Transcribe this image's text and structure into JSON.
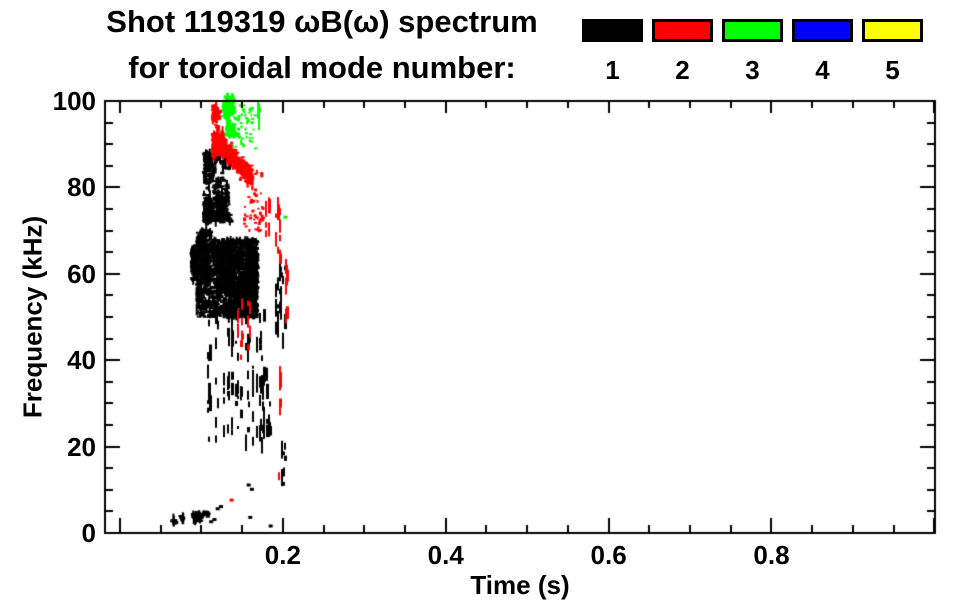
{
  "title": {
    "line1": "Shot 119319 ωB(ω) spectrum",
    "line2": "for toroidal mode number:"
  },
  "legend": {
    "items": [
      {
        "label": "1",
        "color": "#000000"
      },
      {
        "label": "2",
        "color": "#ff0000"
      },
      {
        "label": "3",
        "color": "#00ff00"
      },
      {
        "label": "4",
        "color": "#0000ff"
      },
      {
        "label": "5",
        "color": "#ffff00"
      }
    ]
  },
  "chart_data": {
    "type": "scatter",
    "title": "Shot 119319 ωB(ω) spectrum for toroidal mode number: 1 2 3 4 5",
    "xlabel": "Time (s)",
    "ylabel": "Frequency (kHz)",
    "xlim": [
      -0.0184,
      1.0008
    ],
    "ylim": [
      0,
      100
    ],
    "grid": false,
    "x_ticks": {
      "major_values": [
        0,
        0.2,
        0.4,
        0.6,
        0.8,
        1.0
      ],
      "minor_step": 0.05,
      "labeled": [
        {
          "value": 0.2,
          "label": "0.2"
        },
        {
          "value": 0.4,
          "label": "0.4"
        },
        {
          "value": 0.6,
          "label": "0.6"
        },
        {
          "value": 0.8,
          "label": "0.8"
        }
      ]
    },
    "y_ticks": {
      "major_values": [
        0,
        20,
        40,
        60,
        80,
        100
      ],
      "minor_step": 5,
      "labeled": [
        {
          "value": 0,
          "label": "0"
        },
        {
          "value": 20,
          "label": "20"
        },
        {
          "value": 40,
          "label": "40"
        },
        {
          "value": 60,
          "label": "60"
        },
        {
          "value": 80,
          "label": "80"
        },
        {
          "value": 100,
          "label": "100"
        }
      ]
    },
    "modes": [
      {
        "mode": 1,
        "color": "#000000"
      },
      {
        "mode": 2,
        "color": "#ff0000"
      },
      {
        "mode": 3,
        "color": "#00ff00"
      },
      {
        "mode": 4,
        "color": "#0000ff"
      },
      {
        "mode": 5,
        "color": "#ffff00"
      }
    ],
    "clusters": [
      {
        "type": "walk",
        "mode": 1,
        "t": [
          0.103,
          0.138
        ],
        "f": [
          72,
          88
        ],
        "n": 800,
        "seed": 11
      },
      {
        "type": "walk",
        "mode": 1,
        "t": [
          0.088,
          0.112
        ],
        "f": [
          58,
          70
        ],
        "n": 420,
        "seed": 12
      },
      {
        "type": "walk",
        "mode": 1,
        "t": [
          0.094,
          0.169
        ],
        "f": [
          50,
          68
        ],
        "n": 2600,
        "seed": 13
      },
      {
        "type": "streaks",
        "mode": 1,
        "t": [
          0.105,
          0.178
        ],
        "f": [
          22,
          52
        ],
        "k": 26,
        "seed": 14
      },
      {
        "type": "streaks",
        "mode": 1,
        "t": [
          0.172,
          0.186
        ],
        "f": [
          24,
          40
        ],
        "k": 5,
        "seed": 15
      },
      {
        "type": "streaks",
        "mode": 1,
        "t": [
          0.188,
          0.208
        ],
        "f": [
          46,
          64
        ],
        "k": 7,
        "seed": 16
      },
      {
        "type": "streaks",
        "mode": 1,
        "t": [
          0.196,
          0.206
        ],
        "f": [
          11,
          24
        ],
        "k": 3,
        "seed": 17
      },
      {
        "type": "walk",
        "mode": 1,
        "t": [
          0.089,
          0.109
        ],
        "f": [
          1,
          5
        ],
        "n": 130,
        "seed": 18
      },
      {
        "type": "walk",
        "mode": 1,
        "t": [
          0.059,
          0.078
        ],
        "f": [
          1,
          4
        ],
        "n": 60,
        "seed": 19
      },
      {
        "type": "dots",
        "mode": 1,
        "points": [
          [
            0.12,
            5.5
          ],
          [
            0.124,
            6
          ],
          [
            0.158,
            11
          ],
          [
            0.162,
            10
          ],
          [
            0.16,
            3.5
          ],
          [
            0.185,
            1.5
          ],
          [
            0.112,
            2.5
          ],
          [
            0.116,
            3
          ]
        ]
      },
      {
        "type": "walk",
        "mode": 2,
        "t": [
          0.114,
          0.136
        ],
        "f": [
          87,
          99
        ],
        "n": 280,
        "seed": 21
      },
      {
        "type": "band",
        "mode": 2,
        "t": [
          0.118,
          0.163
        ],
        "f_start": 91,
        "f_end": 82,
        "spread": 2.2,
        "n": 520,
        "seed": 22
      },
      {
        "type": "scatter",
        "mode": 2,
        "t": [
          0.152,
          0.176
        ],
        "f": [
          70,
          84
        ],
        "n": 60,
        "seed": 23
      },
      {
        "type": "streaks",
        "mode": 2,
        "t": [
          0.177,
          0.184
        ],
        "f": [
          69,
          78
        ],
        "k": 2,
        "seed": 24
      },
      {
        "type": "streaks",
        "mode": 2,
        "t": [
          0.19,
          0.2
        ],
        "f": [
          64,
          79
        ],
        "k": 3,
        "seed": 25
      },
      {
        "type": "streaks",
        "mode": 2,
        "t": [
          0.199,
          0.208
        ],
        "f": [
          51,
          66
        ],
        "k": 3,
        "seed": 26
      },
      {
        "type": "streaks",
        "mode": 2,
        "t": [
          0.14,
          0.162
        ],
        "f": [
          41,
          56
        ],
        "k": 5,
        "seed": 27
      },
      {
        "type": "streaks",
        "mode": 2,
        "t": [
          0.194,
          0.2
        ],
        "f": [
          28,
          39
        ],
        "k": 2,
        "seed": 28
      },
      {
        "type": "streaks",
        "mode": 2,
        "t": [
          0.195,
          0.199
        ],
        "f": [
          12,
          18
        ],
        "k": 1,
        "seed": 29
      },
      {
        "type": "dots",
        "mode": 2,
        "points": [
          [
            0.137,
            7.5
          ]
        ]
      },
      {
        "type": "walk",
        "mode": 3,
        "t": [
          0.127,
          0.141
        ],
        "f": [
          92,
          101
        ],
        "n": 320,
        "seed": 31
      },
      {
        "type": "scatter",
        "mode": 3,
        "t": [
          0.139,
          0.166
        ],
        "f": [
          89,
          99
        ],
        "n": 50,
        "seed": 32
      },
      {
        "type": "streaks",
        "mode": 3,
        "t": [
          0.167,
          0.172
        ],
        "f": [
          95,
          101
        ],
        "k": 2,
        "seed": 33
      },
      {
        "type": "dots",
        "mode": 3,
        "points": [
          [
            0.203,
            73
          ]
        ]
      }
    ]
  }
}
